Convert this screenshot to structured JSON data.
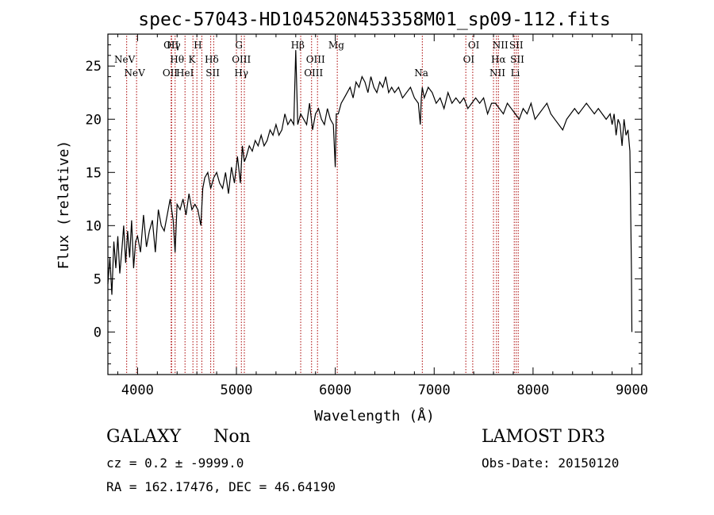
{
  "chart_data": {
    "type": "line",
    "title": "spec-57043-HD104520N453358M01_sp09-112.fits",
    "xlabel": "Wavelength (Å)",
    "ylabel": "Flux (relative)",
    "xlim": [
      3700,
      9100
    ],
    "ylim": [
      -4,
      28
    ],
    "xticks": [
      4000,
      5000,
      6000,
      7000,
      8000,
      9000
    ],
    "yticks": [
      0,
      5,
      10,
      15,
      20,
      25
    ],
    "grid": false,
    "line_color": "#000000",
    "marker_color": "#aa0000",
    "series": [
      {
        "x": [
          3700,
          3720,
          3740,
          3760,
          3780,
          3800,
          3820,
          3840,
          3860,
          3880,
          3900,
          3920,
          3940,
          3960,
          3980,
          4000,
          4030,
          4060,
          4090,
          4120,
          4150,
          4180,
          4210,
          4240,
          4270,
          4300,
          4330,
          4360,
          4380,
          4400,
          4430,
          4460,
          4490,
          4520,
          4550,
          4580,
          4610,
          4640,
          4660,
          4680,
          4710,
          4740,
          4770,
          4800,
          4830,
          4860,
          4890,
          4920,
          4950,
          4980,
          5010,
          5040,
          5060,
          5080,
          5100,
          5130,
          5160,
          5190,
          5220,
          5250,
          5280,
          5310,
          5340,
          5370,
          5400,
          5430,
          5460,
          5490,
          5520,
          5550,
          5580,
          5600,
          5620,
          5650,
          5680,
          5710,
          5740,
          5770,
          5800,
          5830,
          5860,
          5890,
          5920,
          5950,
          5980,
          6000,
          6010,
          6030,
          6060,
          6090,
          6120,
          6150,
          6180,
          6210,
          6240,
          6270,
          6300,
          6330,
          6360,
          6390,
          6420,
          6450,
          6480,
          6510,
          6540,
          6570,
          6600,
          6640,
          6680,
          6720,
          6760,
          6800,
          6840,
          6860,
          6870,
          6880,
          6900,
          6940,
          6980,
          7020,
          7060,
          7100,
          7140,
          7180,
          7220,
          7260,
          7300,
          7340,
          7380,
          7420,
          7460,
          7500,
          7540,
          7580,
          7620,
          7660,
          7700,
          7740,
          7780,
          7820,
          7860,
          7900,
          7940,
          7980,
          8020,
          8060,
          8100,
          8140,
          8180,
          8220,
          8260,
          8300,
          8340,
          8380,
          8420,
          8460,
          8500,
          8540,
          8580,
          8620,
          8660,
          8700,
          8740,
          8780,
          8800,
          8820,
          8840,
          8860,
          8880,
          8900,
          8920,
          8940,
          8960,
          8980,
          8995,
          9000
        ],
        "y": [
          4.5,
          7.0,
          3.5,
          8.5,
          6.0,
          9.0,
          5.5,
          7.5,
          10.0,
          6.5,
          9.5,
          7.0,
          10.5,
          6.0,
          8.5,
          9.0,
          7.5,
          11.0,
          8.0,
          9.5,
          10.5,
          7.5,
          11.5,
          10.0,
          9.5,
          11.0,
          12.5,
          10.5,
          7.5,
          12.0,
          11.5,
          12.5,
          11.0,
          13.0,
          11.5,
          12.0,
          11.5,
          10.0,
          13.5,
          14.5,
          15.0,
          13.5,
          14.5,
          15.0,
          14.0,
          13.5,
          15.0,
          13.0,
          15.5,
          14.0,
          16.5,
          14.0,
          17.5,
          16.0,
          16.5,
          17.5,
          17.0,
          18.0,
          17.5,
          18.5,
          17.5,
          18.0,
          19.0,
          18.5,
          19.5,
          18.5,
          19.0,
          20.5,
          19.5,
          20.0,
          19.5,
          26.5,
          19.5,
          20.5,
          20.0,
          19.5,
          21.5,
          19.0,
          20.5,
          21.0,
          20.0,
          19.5,
          21.0,
          20.0,
          19.5,
          15.5,
          20.5,
          20.5,
          21.5,
          22.0,
          22.5,
          23.0,
          22.0,
          23.5,
          23.0,
          24.0,
          23.5,
          22.5,
          24.0,
          23.0,
          22.5,
          23.5,
          23.0,
          24.0,
          22.5,
          23.0,
          22.5,
          23.0,
          22.0,
          22.5,
          23.0,
          22.0,
          21.5,
          19.5,
          22.0,
          23.0,
          22.0,
          23.0,
          22.5,
          21.5,
          22.0,
          21.0,
          22.5,
          21.5,
          22.0,
          21.5,
          22.0,
          21.0,
          21.5,
          22.0,
          21.5,
          22.0,
          20.5,
          21.5,
          21.5,
          21.0,
          20.5,
          21.5,
          21.0,
          20.5,
          20.0,
          21.0,
          20.5,
          21.5,
          20.0,
          20.5,
          21.0,
          21.5,
          20.5,
          20.0,
          19.5,
          19.0,
          20.0,
          20.5,
          21.0,
          20.5,
          21.0,
          21.5,
          21.0,
          20.5,
          21.0,
          20.5,
          20.0,
          20.5,
          19.5,
          20.5,
          18.5,
          20.0,
          19.5,
          17.5,
          20.0,
          18.5,
          19.0,
          17.0,
          6.0,
          0.0
        ]
      }
    ],
    "lines": [
      {
        "label": "NeV",
        "x": 3870,
        "row": 1
      },
      {
        "label": "NeV",
        "x": 3970,
        "row": 0
      },
      {
        "label": "OII",
        "x": 4340,
        "row": 2
      },
      {
        "label": "Hγ",
        "x": 4365,
        "row": 2
      },
      {
        "label": "H",
        "x": 4610,
        "row": 2
      },
      {
        "label": "Hθ",
        "x": 4400,
        "row": 1
      },
      {
        "label": "K",
        "x": 4550,
        "row": 1
      },
      {
        "label": "Hδ",
        "x": 4750,
        "row": 1
      },
      {
        "label": "OII",
        "x": 4330,
        "row": 0
      },
      {
        "label": "HeI",
        "x": 4480,
        "row": 0
      },
      {
        "label": "SII",
        "x": 4760,
        "row": 0
      },
      {
        "label": "G",
        "x": 5025,
        "row": 2
      },
      {
        "label": "OIII",
        "x": 5050,
        "row": 1
      },
      {
        "label": "Hγ",
        "x": 5050,
        "row": 0
      },
      {
        "label": "Hβ",
        "x": 5620,
        "row": 2
      },
      {
        "label": "OIII",
        "x": 5800,
        "row": 1
      },
      {
        "label": "OIII",
        "x": 5780,
        "row": 0
      },
      {
        "label": "Mg",
        "x": 6010,
        "row": 2
      },
      {
        "label": "Na",
        "x": 6870,
        "row": 0
      },
      {
        "label": "OI",
        "x": 7400,
        "row": 2
      },
      {
        "label": "OI",
        "x": 7350,
        "row": 1
      },
      {
        "label": "NII",
        "x": 7670,
        "row": 2
      },
      {
        "label": "SII",
        "x": 7830,
        "row": 2
      },
      {
        "label": "Hα",
        "x": 7650,
        "row": 1
      },
      {
        "label": "SII",
        "x": 7840,
        "row": 1
      },
      {
        "label": "NII",
        "x": 7640,
        "row": 0
      },
      {
        "label": "Li",
        "x": 7820,
        "row": 0
      }
    ],
    "marker_x": [
      3890,
      3990,
      4340,
      4345,
      4380,
      4480,
      4560,
      4600,
      4650,
      4740,
      4770,
      5000,
      5050,
      5080,
      5650,
      5760,
      5820,
      6020,
      6880,
      7320,
      7390,
      7600,
      7630,
      7650,
      7810,
      7830,
      7850
    ]
  },
  "info": {
    "object_class": "GALAXY",
    "subclass": "Non",
    "cz": "cz = 0.2 ± -9999.0",
    "radec": "RA = 162.17476, DEC =  46.64190",
    "survey": "LAMOST DR3",
    "obs_date": "Obs-Date: 20150120"
  }
}
